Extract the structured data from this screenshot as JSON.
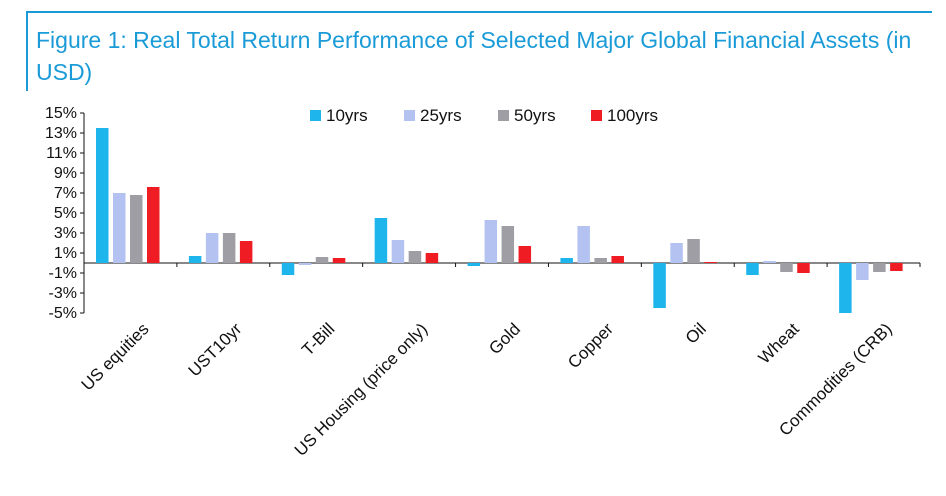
{
  "chart_data": {
    "type": "bar",
    "title": "Figure 1: Real Total Return Performance of Selected Major Global Financial Assets (in USD)",
    "xlabel": "",
    "ylabel": "",
    "ylim": [
      -5,
      15
    ],
    "yticks": [
      "15%",
      "13%",
      "11%",
      "9%",
      "7%",
      "5%",
      "3%",
      "1%",
      "-1%",
      "-3%",
      "-5%"
    ],
    "ytick_values": [
      15,
      13,
      11,
      9,
      7,
      5,
      3,
      1,
      -1,
      -3,
      -5
    ],
    "legend_position": "top-center",
    "categories": [
      "US equities",
      "UST10yr",
      "T-Bill",
      "US Housing (price only)",
      "Gold",
      "Copper",
      "Oil",
      "Wheat",
      "Commodities (CRB)"
    ],
    "series": [
      {
        "name": "10yrs",
        "color": "#1eb4ec",
        "values": [
          13.5,
          0.7,
          -1.2,
          4.5,
          -0.3,
          0.5,
          -4.5,
          -1.2,
          -5.0
        ]
      },
      {
        "name": "25yrs",
        "color": "#b4c2f2",
        "values": [
          7.0,
          3.0,
          -0.2,
          2.3,
          4.3,
          3.7,
          2.0,
          0.2,
          -1.7
        ]
      },
      {
        "name": "50yrs",
        "color": "#9e9ea4",
        "values": [
          6.8,
          3.0,
          0.6,
          1.2,
          3.7,
          0.5,
          2.4,
          -0.9,
          -0.9
        ]
      },
      {
        "name": "100yrs",
        "color": "#ef1c24",
        "values": [
          7.6,
          2.2,
          0.5,
          1.0,
          1.7,
          0.7,
          0.1,
          -1.0,
          -0.8
        ]
      }
    ]
  }
}
